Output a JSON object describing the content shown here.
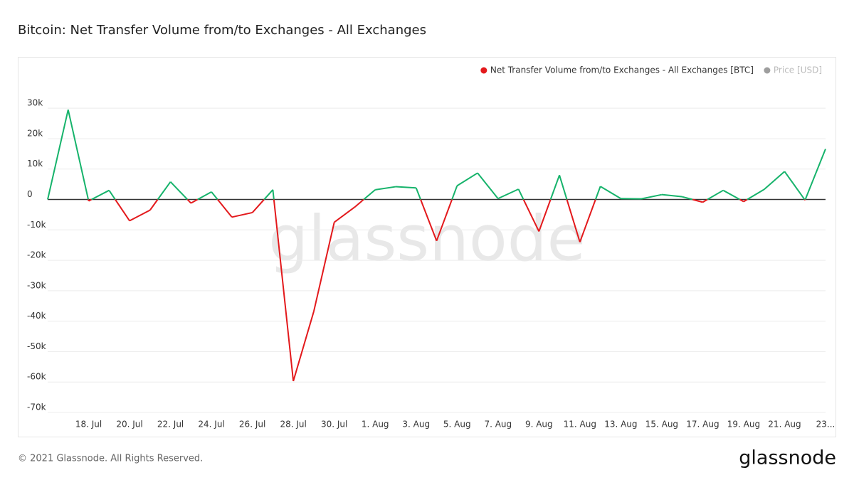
{
  "chart_data": {
    "type": "line",
    "title": "Bitcoin: Net Transfer Volume from/to Exchanges - All Exchanges",
    "watermark": "glassnode",
    "footer": "© 2021 Glassnode. All Rights Reserved.",
    "logo": "glassnode",
    "categories": [
      null,
      null,
      "18. Jul",
      null,
      "20. Jul",
      null,
      "22. Jul",
      null,
      "24. Jul",
      null,
      "26. Jul",
      null,
      "28. Jul",
      null,
      "30. Jul",
      null,
      "1. Aug",
      null,
      "3. Aug",
      null,
      "5. Aug",
      null,
      "7. Aug",
      null,
      "9. Aug",
      null,
      "11. Aug",
      null,
      "13. Aug",
      null,
      "15. Aug",
      null,
      "17. Aug",
      null,
      "19. Aug",
      null,
      "21. Aug",
      null,
      "23..."
    ],
    "series": [
      {
        "name": "Net Transfer Volume from/to Exchanges - All Exchanges [BTC]",
        "color": "#e3191c",
        "positive_color": "#16b36b",
        "values": [
          0,
          29500,
          -500,
          3000,
          -7000,
          -3500,
          5800,
          -1200,
          2500,
          -5800,
          -4300,
          3200,
          -59700,
          -36800,
          -7500,
          -2500,
          3200,
          4200,
          3800,
          -13600,
          4500,
          8700,
          300,
          3400,
          -10500,
          8000,
          -14000,
          4300,
          300,
          200,
          1600,
          900,
          -900,
          3000,
          -700,
          3300,
          9200,
          -200,
          16600
        ]
      },
      {
        "name": "Price [USD]",
        "color": "#9e9e9e",
        "hidden": true
      }
    ],
    "ylim": [
      -70000,
      45000
    ],
    "yticks": [
      {
        "value": -70000,
        "label": "-70k"
      },
      {
        "value": -60000,
        "label": "-60k"
      },
      {
        "value": -50000,
        "label": "-50k"
      },
      {
        "value": -40000,
        "label": "-40k"
      },
      {
        "value": -30000,
        "label": "-30k"
      },
      {
        "value": -20000,
        "label": "-20k"
      },
      {
        "value": -10000,
        "label": "-10k"
      },
      0,
      {
        "value": 10000,
        "label": "10k"
      },
      {
        "value": 20000,
        "label": "20k"
      },
      {
        "value": 30000,
        "label": "30k"
      }
    ],
    "grid": true
  }
}
